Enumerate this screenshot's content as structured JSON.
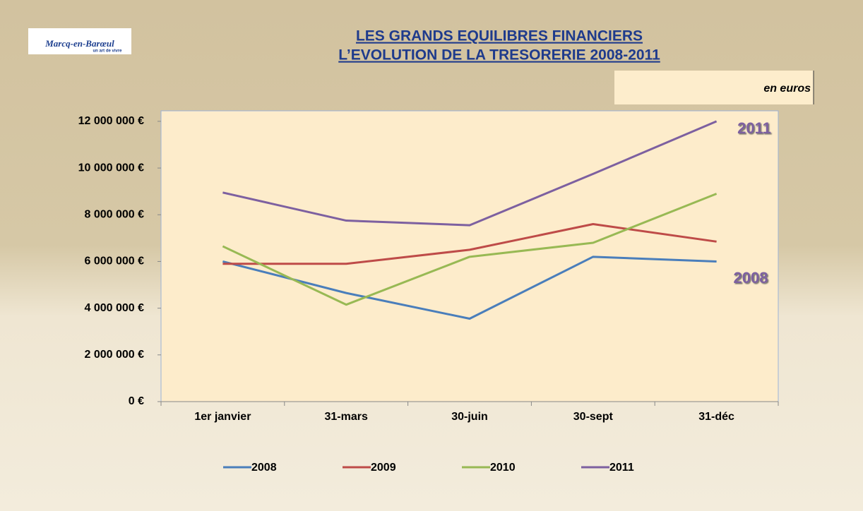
{
  "logo": {
    "name": "Marcq-en-Barœul",
    "tagline": "un art de vivre"
  },
  "chart_data": {
    "type": "line",
    "title": [
      "LES GRANDS EQUILIBRES FINANCIERS",
      "L’EVOLUTION DE LA TRESORERIE 2008-2011"
    ],
    "subtitle": "en euros",
    "categories": [
      "1er janvier",
      "31-mars",
      "30-juin",
      "30-sept",
      "31-déc"
    ],
    "series": [
      {
        "name": "2008",
        "color": "#4a7ebb",
        "values": [
          6000000,
          4650000,
          3550000,
          6200000,
          6000000
        ]
      },
      {
        "name": "2009",
        "color": "#be4b48",
        "values": [
          5900000,
          5900000,
          6500000,
          7600000,
          6850000
        ]
      },
      {
        "name": "2010",
        "color": "#98b954",
        "values": [
          6650000,
          4150000,
          6200000,
          6800000,
          8900000
        ]
      },
      {
        "name": "2011",
        "color": "#7d60a0",
        "values": [
          8950000,
          7750000,
          7550000,
          9750000,
          12000000
        ]
      }
    ],
    "ylim": [
      0,
      12450000
    ],
    "yticks": [
      {
        "value": 0,
        "label": "0 €"
      },
      {
        "value": 2000000,
        "label": "2 000 000 €"
      },
      {
        "value": 4000000,
        "label": "4 000 000 €"
      },
      {
        "value": 6000000,
        "label": "6 000 000 €"
      },
      {
        "value": 8000000,
        "label": "8 000 000 €"
      },
      {
        "value": 10000000,
        "label": "10 000 000 €"
      },
      {
        "value": 12000000,
        "label": "12 000 000 €"
      }
    ],
    "annotations": [
      "2011",
      "2008"
    ],
    "annotation_color": "#7d60a0",
    "legend": "bottom"
  }
}
